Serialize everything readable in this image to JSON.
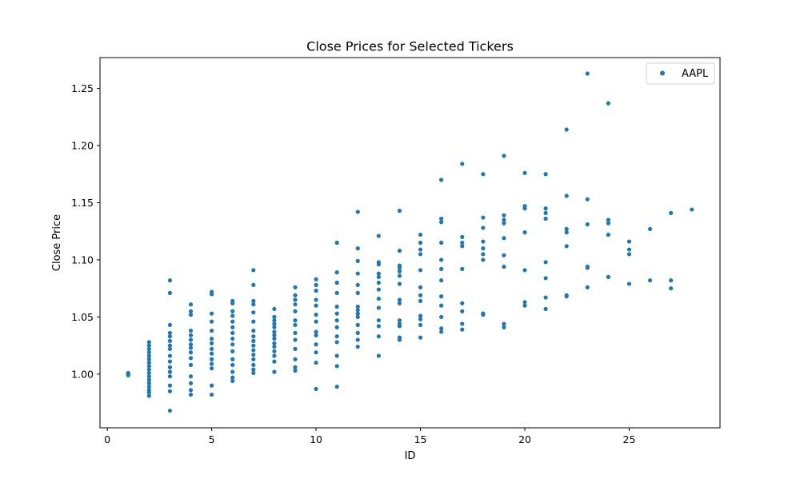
{
  "chart_data": {
    "type": "scatter",
    "title": "Close Prices for Selected Tickers",
    "xlabel": "ID",
    "ylabel": "Close Price",
    "xlim": [
      -0.35,
      29.35
    ],
    "ylim": [
      0.953,
      1.277
    ],
    "xticks": [
      0,
      5,
      10,
      15,
      20,
      25
    ],
    "xtick_labels": [
      "0",
      "5",
      "10",
      "15",
      "20",
      "25"
    ],
    "yticks": [
      1.0,
      1.05,
      1.1,
      1.15,
      1.2,
      1.25
    ],
    "ytick_labels": [
      "1.00",
      "1.05",
      "1.10",
      "1.15",
      "1.20",
      "1.25"
    ],
    "grid": false,
    "legend": "upper right",
    "series": [
      {
        "name": "AAPL",
        "color": "#1f77b4",
        "marker": "circle",
        "points": [
          [
            1,
            1.0
          ],
          [
            1,
            0.999
          ],
          [
            1,
            1.0
          ],
          [
            1,
            1.001
          ],
          [
            2,
            0.981
          ],
          [
            2,
            0.984
          ],
          [
            2,
            0.986
          ],
          [
            2,
            0.989
          ],
          [
            2,
            0.992
          ],
          [
            2,
            0.995
          ],
          [
            2,
            0.998
          ],
          [
            2,
            1.001
          ],
          [
            2,
            1.004
          ],
          [
            2,
            1.007
          ],
          [
            2,
            1.01
          ],
          [
            2,
            1.013
          ],
          [
            2,
            1.016
          ],
          [
            2,
            1.019
          ],
          [
            2,
            1.022
          ],
          [
            2,
            1.025
          ],
          [
            2,
            1.028
          ],
          [
            3,
            0.968
          ],
          [
            3,
            0.985
          ],
          [
            3,
            0.99
          ],
          [
            3,
            0.998
          ],
          [
            3,
            1.002
          ],
          [
            3,
            1.006
          ],
          [
            3,
            1.011
          ],
          [
            3,
            1.016
          ],
          [
            3,
            1.022
          ],
          [
            3,
            1.025
          ],
          [
            3,
            1.029
          ],
          [
            3,
            1.033
          ],
          [
            3,
            1.036
          ],
          [
            3,
            1.043
          ],
          [
            3,
            1.071
          ],
          [
            3,
            1.082
          ],
          [
            4,
            0.982
          ],
          [
            4,
            0.986
          ],
          [
            4,
            0.992
          ],
          [
            4,
            0.998
          ],
          [
            4,
            1.008
          ],
          [
            4,
            1.014
          ],
          [
            4,
            1.019
          ],
          [
            4,
            1.023
          ],
          [
            4,
            1.026
          ],
          [
            4,
            1.03
          ],
          [
            4,
            1.034
          ],
          [
            4,
            1.038
          ],
          [
            4,
            1.052
          ],
          [
            4,
            1.055
          ],
          [
            4,
            1.061
          ],
          [
            5,
            0.982
          ],
          [
            5,
            0.99
          ],
          [
            5,
            1.005
          ],
          [
            5,
            1.009
          ],
          [
            5,
            1.013
          ],
          [
            5,
            1.018
          ],
          [
            5,
            1.022
          ],
          [
            5,
            1.027
          ],
          [
            5,
            1.031
          ],
          [
            5,
            1.038
          ],
          [
            5,
            1.046
          ],
          [
            5,
            1.053
          ],
          [
            5,
            1.07
          ],
          [
            5,
            1.072
          ],
          [
            6,
            0.994
          ],
          [
            6,
            0.997
          ],
          [
            6,
            1.002
          ],
          [
            6,
            1.008
          ],
          [
            6,
            1.013
          ],
          [
            6,
            1.02
          ],
          [
            6,
            1.026
          ],
          [
            6,
            1.031
          ],
          [
            6,
            1.036
          ],
          [
            6,
            1.041
          ],
          [
            6,
            1.046
          ],
          [
            6,
            1.051
          ],
          [
            6,
            1.055
          ],
          [
            6,
            1.062
          ],
          [
            6,
            1.064
          ],
          [
            7,
            1.001
          ],
          [
            7,
            1.004
          ],
          [
            7,
            1.008
          ],
          [
            7,
            1.013
          ],
          [
            7,
            1.017
          ],
          [
            7,
            1.021
          ],
          [
            7,
            1.025
          ],
          [
            7,
            1.029
          ],
          [
            7,
            1.033
          ],
          [
            7,
            1.038
          ],
          [
            7,
            1.046
          ],
          [
            7,
            1.054
          ],
          [
            7,
            1.061
          ],
          [
            7,
            1.064
          ],
          [
            7,
            1.078
          ],
          [
            7,
            1.091
          ],
          [
            8,
            1.002
          ],
          [
            8,
            1.011
          ],
          [
            8,
            1.016
          ],
          [
            8,
            1.02
          ],
          [
            8,
            1.024
          ],
          [
            8,
            1.027
          ],
          [
            8,
            1.031
          ],
          [
            8,
            1.034
          ],
          [
            8,
            1.037
          ],
          [
            8,
            1.041
          ],
          [
            8,
            1.044
          ],
          [
            8,
            1.047
          ],
          [
            8,
            1.05
          ],
          [
            8,
            1.057
          ],
          [
            9,
            1.003
          ],
          [
            9,
            1.006
          ],
          [
            9,
            1.013
          ],
          [
            9,
            1.022
          ],
          [
            9,
            1.03
          ],
          [
            9,
            1.036
          ],
          [
            9,
            1.043
          ],
          [
            9,
            1.047
          ],
          [
            9,
            1.055
          ],
          [
            9,
            1.061
          ],
          [
            9,
            1.065
          ],
          [
            9,
            1.069
          ],
          [
            9,
            1.076
          ],
          [
            10,
            0.987
          ],
          [
            10,
            1.01
          ],
          [
            10,
            1.019
          ],
          [
            10,
            1.026
          ],
          [
            10,
            1.034
          ],
          [
            10,
            1.037
          ],
          [
            10,
            1.046
          ],
          [
            10,
            1.052
          ],
          [
            10,
            1.06
          ],
          [
            10,
            1.065
          ],
          [
            10,
            1.073
          ],
          [
            10,
            1.078
          ],
          [
            10,
            1.083
          ],
          [
            11,
            0.989
          ],
          [
            11,
            1.007
          ],
          [
            11,
            1.016
          ],
          [
            11,
            1.028
          ],
          [
            11,
            1.033
          ],
          [
            11,
            1.041
          ],
          [
            11,
            1.047
          ],
          [
            11,
            1.053
          ],
          [
            11,
            1.059
          ],
          [
            11,
            1.071
          ],
          [
            11,
            1.08
          ],
          [
            11,
            1.089
          ],
          [
            11,
            1.115
          ],
          [
            12,
            1.024
          ],
          [
            12,
            1.03
          ],
          [
            12,
            1.036
          ],
          [
            12,
            1.043
          ],
          [
            12,
            1.05
          ],
          [
            12,
            1.053
          ],
          [
            12,
            1.056
          ],
          [
            12,
            1.059
          ],
          [
            12,
            1.071
          ],
          [
            12,
            1.078
          ],
          [
            12,
            1.088
          ],
          [
            12,
            1.099
          ],
          [
            12,
            1.11
          ],
          [
            12,
            1.142
          ],
          [
            13,
            1.016
          ],
          [
            13,
            1.033
          ],
          [
            13,
            1.042
          ],
          [
            13,
            1.047
          ],
          [
            13,
            1.058
          ],
          [
            13,
            1.066
          ],
          [
            13,
            1.074
          ],
          [
            13,
            1.08
          ],
          [
            13,
            1.085
          ],
          [
            13,
            1.088
          ],
          [
            13,
            1.096
          ],
          [
            13,
            1.098
          ],
          [
            13,
            1.121
          ],
          [
            14,
            1.03
          ],
          [
            14,
            1.032
          ],
          [
            14,
            1.042
          ],
          [
            14,
            1.044
          ],
          [
            14,
            1.047
          ],
          [
            14,
            1.062
          ],
          [
            14,
            1.065
          ],
          [
            14,
            1.079
          ],
          [
            14,
            1.086
          ],
          [
            14,
            1.09
          ],
          [
            14,
            1.093
          ],
          [
            14,
            1.095
          ],
          [
            14,
            1.108
          ],
          [
            14,
            1.143
          ],
          [
            15,
            1.032
          ],
          [
            15,
            1.043
          ],
          [
            15,
            1.048
          ],
          [
            15,
            1.051
          ],
          [
            15,
            1.064
          ],
          [
            15,
            1.069
          ],
          [
            15,
            1.076
          ],
          [
            15,
            1.091
          ],
          [
            15,
            1.105
          ],
          [
            15,
            1.109
          ],
          [
            15,
            1.115
          ],
          [
            15,
            1.122
          ],
          [
            16,
            1.037
          ],
          [
            16,
            1.04
          ],
          [
            16,
            1.05
          ],
          [
            16,
            1.06
          ],
          [
            16,
            1.068
          ],
          [
            16,
            1.082
          ],
          [
            16,
            1.092
          ],
          [
            16,
            1.1
          ],
          [
            16,
            1.115
          ],
          [
            16,
            1.133
          ],
          [
            16,
            1.136
          ],
          [
            16,
            1.17
          ],
          [
            17,
            1.039
          ],
          [
            17,
            1.044
          ],
          [
            17,
            1.055
          ],
          [
            17,
            1.062
          ],
          [
            17,
            1.092
          ],
          [
            17,
            1.112
          ],
          [
            17,
            1.115
          ],
          [
            17,
            1.12
          ],
          [
            17,
            1.184
          ],
          [
            18,
            1.052
          ],
          [
            18,
            1.053
          ],
          [
            18,
            1.1
          ],
          [
            18,
            1.105
          ],
          [
            18,
            1.11
          ],
          [
            18,
            1.116
          ],
          [
            18,
            1.128
          ],
          [
            18,
            1.137
          ],
          [
            18,
            1.175
          ],
          [
            19,
            1.041
          ],
          [
            19,
            1.044
          ],
          [
            19,
            1.094
          ],
          [
            19,
            1.104
          ],
          [
            19,
            1.119
          ],
          [
            19,
            1.132
          ],
          [
            19,
            1.135
          ],
          [
            19,
            1.139
          ],
          [
            19,
            1.191
          ],
          [
            20,
            1.06
          ],
          [
            20,
            1.063
          ],
          [
            20,
            1.091
          ],
          [
            20,
            1.124
          ],
          [
            20,
            1.145
          ],
          [
            20,
            1.147
          ],
          [
            20,
            1.176
          ],
          [
            21,
            1.057
          ],
          [
            21,
            1.067
          ],
          [
            21,
            1.084
          ],
          [
            21,
            1.098
          ],
          [
            21,
            1.136
          ],
          [
            21,
            1.141
          ],
          [
            21,
            1.145
          ],
          [
            21,
            1.175
          ],
          [
            22,
            1.068
          ],
          [
            22,
            1.069
          ],
          [
            22,
            1.112
          ],
          [
            22,
            1.124
          ],
          [
            22,
            1.127
          ],
          [
            22,
            1.156
          ],
          [
            22,
            1.214
          ],
          [
            23,
            1.076
          ],
          [
            23,
            1.093
          ],
          [
            23,
            1.094
          ],
          [
            23,
            1.131
          ],
          [
            23,
            1.153
          ],
          [
            23,
            1.263
          ],
          [
            24,
            1.085
          ],
          [
            24,
            1.122
          ],
          [
            24,
            1.132
          ],
          [
            24,
            1.135
          ],
          [
            24,
            1.237
          ],
          [
            25,
            1.079
          ],
          [
            25,
            1.105
          ],
          [
            25,
            1.109
          ],
          [
            25,
            1.116
          ],
          [
            26,
            1.082
          ],
          [
            26,
            1.127
          ],
          [
            27,
            1.075
          ],
          [
            27,
            1.082
          ],
          [
            27,
            1.141
          ],
          [
            28,
            1.144
          ]
        ]
      }
    ]
  }
}
